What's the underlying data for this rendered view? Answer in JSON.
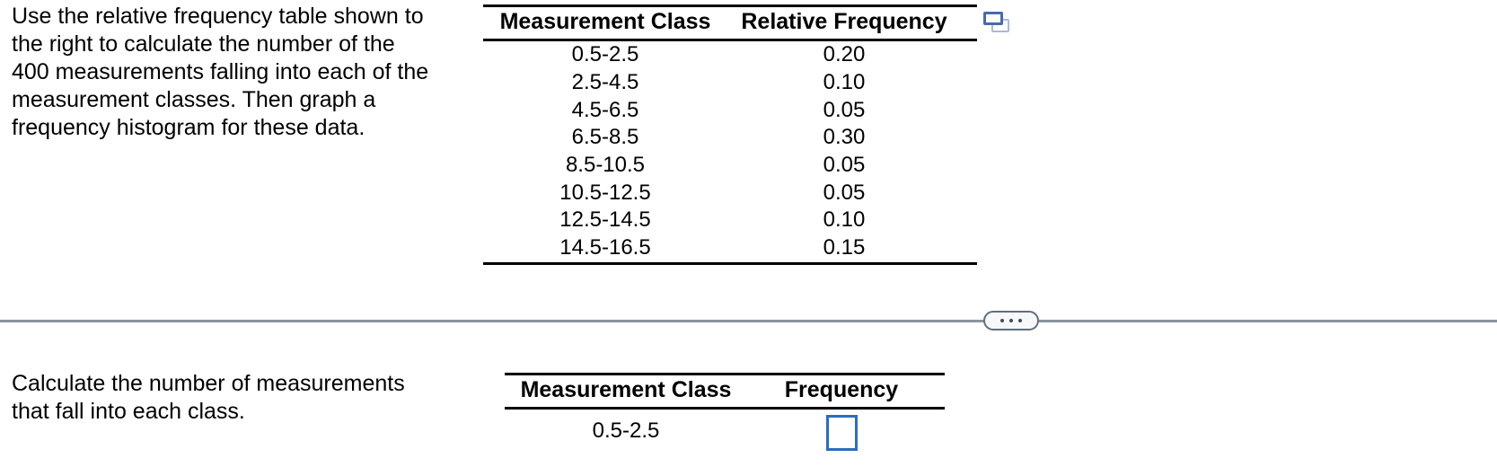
{
  "problem": {
    "instruction": "Use the relative frequency table shown to\nthe right to calculate the number of the\n400 measurements falling into each of the\nmeasurement classes. Then graph a\nfrequency histogram for these data.",
    "table": {
      "headers": [
        "Measurement Class",
        "Relative Frequency"
      ],
      "rows": [
        {
          "measurement_class": "0.5-2.5",
          "relative_frequency": "0.20"
        },
        {
          "measurement_class": "2.5-4.5",
          "relative_frequency": "0.10"
        },
        {
          "measurement_class": "4.5-6.5",
          "relative_frequency": "0.05"
        },
        {
          "measurement_class": "6.5-8.5",
          "relative_frequency": "0.30"
        },
        {
          "measurement_class": "8.5-10.5",
          "relative_frequency": "0.05"
        },
        {
          "measurement_class": "10.5-12.5",
          "relative_frequency": "0.05"
        },
        {
          "measurement_class": "12.5-14.5",
          "relative_frequency": "0.10"
        },
        {
          "measurement_class": "14.5-16.5",
          "relative_frequency": "0.15"
        }
      ],
      "icon": "copy-table-icon"
    }
  },
  "divider": {
    "icon": "ellipsis-icon"
  },
  "answer": {
    "prompt": "Calculate the number of measurements\nthat fall into each class.",
    "table": {
      "headers": [
        "Measurement Class",
        "Frequency"
      ],
      "rows": [
        {
          "measurement_class": "0.5-2.5",
          "frequency_value": ""
        }
      ]
    }
  },
  "colors": {
    "answer_box_blue": "#2b6cbf",
    "divider_gray": "#8a94a0",
    "pill_border_gray": "#5f6f7d",
    "icon_blue_dark": "#4a69ae",
    "icon_blue_light": "#aab8d9",
    "text_black": "#000000"
  }
}
